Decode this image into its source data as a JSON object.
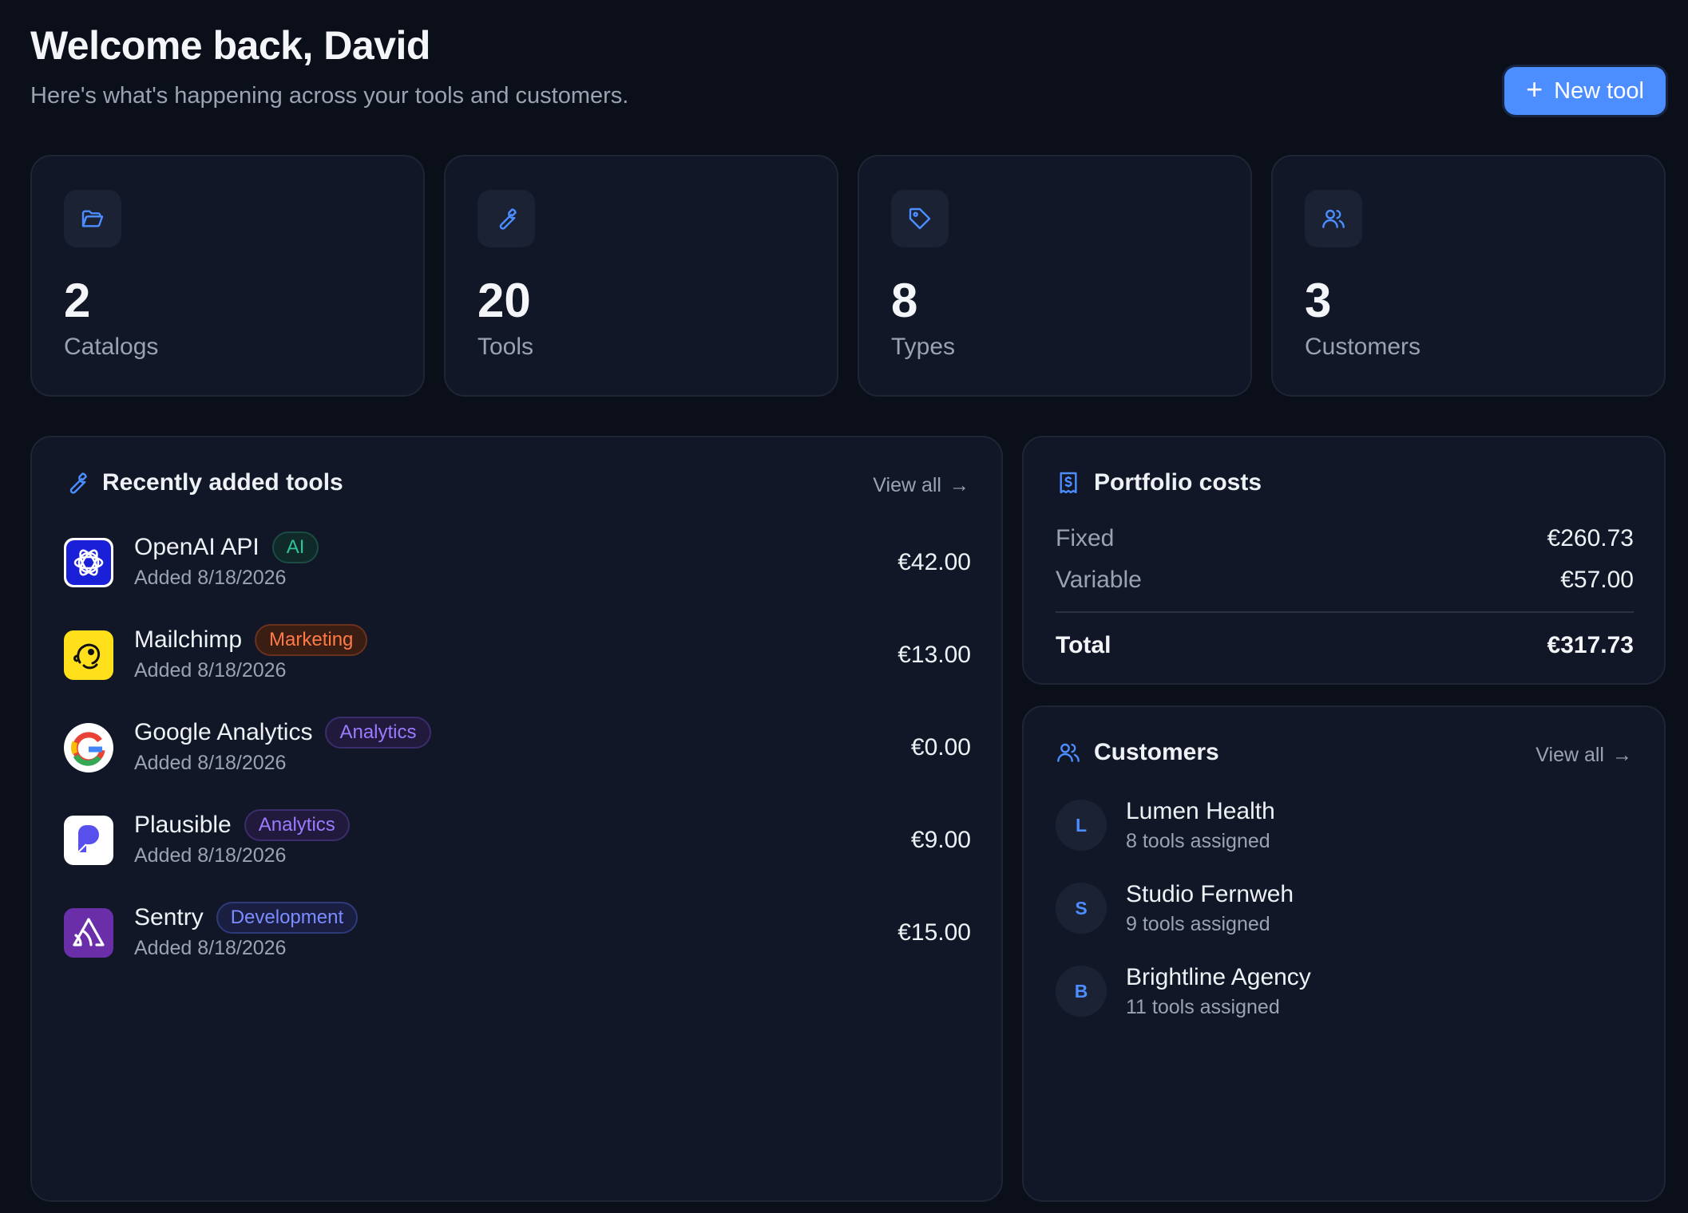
{
  "header": {
    "title": "Welcome back, David",
    "subtitle": "Here's what's happening across your tools and customers.",
    "new_tool_label": "New tool"
  },
  "stats": [
    {
      "icon": "folder-icon",
      "value": "2",
      "label": "Catalogs"
    },
    {
      "icon": "wrench-icon",
      "value": "20",
      "label": "Tools"
    },
    {
      "icon": "tag-icon",
      "value": "8",
      "label": "Types"
    },
    {
      "icon": "users-icon",
      "value": "3",
      "label": "Customers"
    }
  ],
  "recent_tools": {
    "title": "Recently added tools",
    "view_all": "View all",
    "items": [
      {
        "name": "OpenAI API",
        "tag": "AI",
        "added": "Added 8/18/2026",
        "price": "€42.00",
        "logo": "openai-logo"
      },
      {
        "name": "Mailchimp",
        "tag": "Marketing",
        "added": "Added 8/18/2026",
        "price": "€13.00",
        "logo": "mailchimp-logo"
      },
      {
        "name": "Google Analytics",
        "tag": "Analytics",
        "added": "Added 8/18/2026",
        "price": "€0.00",
        "logo": "google-logo"
      },
      {
        "name": "Plausible",
        "tag": "Analytics",
        "added": "Added 8/18/2026",
        "price": "€9.00",
        "logo": "plausible-logo"
      },
      {
        "name": "Sentry",
        "tag": "Development",
        "added": "Added 8/18/2026",
        "price": "€15.00",
        "logo": "sentry-logo"
      }
    ]
  },
  "portfolio_costs": {
    "title": "Portfolio costs",
    "fixed_label": "Fixed",
    "fixed_value": "€260.73",
    "variable_label": "Variable",
    "variable_value": "€57.00",
    "total_label": "Total",
    "total_value": "€317.73"
  },
  "customers": {
    "title": "Customers",
    "view_all": "View all",
    "items": [
      {
        "initial": "L",
        "name": "Lumen Health",
        "sub": "8 tools assigned"
      },
      {
        "initial": "S",
        "name": "Studio Fernweh",
        "sub": "9 tools assigned"
      },
      {
        "initial": "B",
        "name": "Brightline Agency",
        "sub": "11 tools assigned"
      }
    ]
  },
  "colors": {
    "background": "#0b0f1a",
    "card": "#111726",
    "accent": "#4c8dff"
  }
}
